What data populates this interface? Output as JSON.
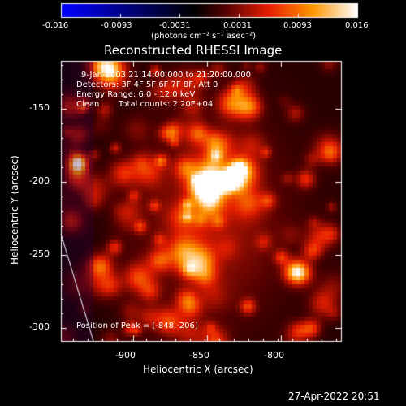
{
  "colorbar": {
    "tick_labels": [
      "-0.016",
      "-0.0093",
      "-0.0031",
      "0.0031",
      "0.0093",
      "0.016"
    ],
    "units_label": "(photons cm⁻² s⁻¹ asec⁻²)",
    "colormap": "blue-to-black-to-red-to-yellow-to-white"
  },
  "plot": {
    "title": "Reconstructed RHESSI Image",
    "xlabel": "Heliocentric X (arcsec)",
    "ylabel": "Heliocentric Y (arcsec)",
    "x_ticks": [
      "-900",
      "-850",
      "-800"
    ],
    "y_ticks": [
      "-150",
      "-200",
      "-250",
      "-300"
    ],
    "annotations": {
      "line1": "9-Jan-2003 21:14:00.000 to 21:20:00.000",
      "line2": "Detectors: 3F 4F 5F 6F 7F 8F, Att 0",
      "line3": "Energy Range: 6.0 - 12.0 keV",
      "line4_left": "Clean",
      "line4_right": "Total counts: 2.20E+04",
      "peak": "Position of Peak = [-848,-206]"
    },
    "peak_position": {
      "x": -848,
      "y": -206
    },
    "xlim": [
      -948,
      -758
    ],
    "ylim": [
      -312,
      -122
    ]
  },
  "footer": {
    "timestamp": "27-Apr-2022 20:51"
  }
}
